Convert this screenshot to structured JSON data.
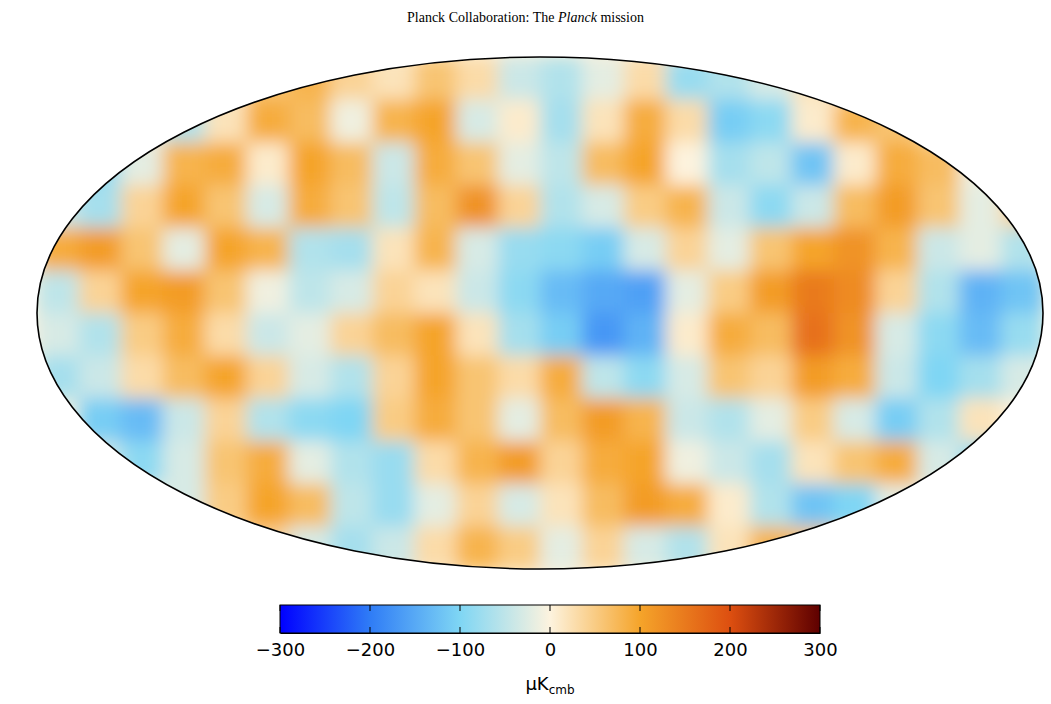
{
  "chart_data": {
    "type": "heatmap",
    "title": "Planck Collaboration: The Planck mission",
    "cells": [
      [
        null,
        null,
        null,
        null,
        null,
        60,
        80,
        40,
        20,
        60,
        30,
        -40,
        -60,
        -20,
        30,
        -80,
        -60,
        -30,
        20,
        null,
        null,
        null,
        null,
        null
      ],
      [
        null,
        null,
        null,
        -60,
        20,
        90,
        70,
        -10,
        80,
        100,
        -30,
        10,
        -70,
        20,
        90,
        30,
        -110,
        -90,
        10,
        80,
        60,
        null,
        null,
        null
      ],
      [
        null,
        -80,
        -20,
        80,
        90,
        10,
        100,
        70,
        -40,
        90,
        60,
        -20,
        -50,
        70,
        100,
        0,
        -70,
        -50,
        -120,
        10,
        90,
        70,
        -10,
        null
      ],
      [
        -40,
        -70,
        40,
        100,
        60,
        -30,
        90,
        60,
        -50,
        70,
        120,
        40,
        -60,
        -30,
        50,
        80,
        -40,
        -90,
        -40,
        70,
        110,
        60,
        -20,
        40
      ],
      [
        90,
        110,
        60,
        -20,
        100,
        80,
        -60,
        -70,
        20,
        80,
        -30,
        -80,
        -90,
        -110,
        -30,
        40,
        -20,
        60,
        100,
        120,
        80,
        -40,
        -20,
        -60
      ],
      [
        -50,
        40,
        100,
        110,
        60,
        -10,
        -50,
        -30,
        40,
        20,
        -40,
        -90,
        -130,
        -150,
        -160,
        -20,
        50,
        110,
        150,
        130,
        40,
        -60,
        -140,
        -120
      ],
      [
        -30,
        -60,
        50,
        90,
        30,
        -40,
        -20,
        40,
        70,
        100,
        20,
        -70,
        -110,
        -170,
        -140,
        10,
        90,
        70,
        160,
        120,
        -30,
        -90,
        -130,
        -80
      ],
      [
        -70,
        -40,
        30,
        70,
        100,
        40,
        -30,
        -60,
        40,
        100,
        60,
        30,
        90,
        -50,
        -90,
        -30,
        60,
        40,
        110,
        90,
        -40,
        -100,
        -70,
        -30
      ],
      [
        null,
        -110,
        -130,
        -40,
        40,
        -60,
        -90,
        -100,
        50,
        90,
        60,
        -20,
        70,
        110,
        80,
        -40,
        -60,
        -20,
        50,
        -30,
        -110,
        -60,
        20,
        null
      ],
      [
        null,
        -40,
        -90,
        -30,
        60,
        90,
        -20,
        -60,
        -80,
        30,
        80,
        110,
        40,
        90,
        100,
        -10,
        -40,
        -70,
        20,
        60,
        90,
        -30,
        -80,
        null
      ],
      [
        null,
        null,
        null,
        -30,
        50,
        100,
        70,
        -50,
        -80,
        -20,
        40,
        -30,
        20,
        70,
        110,
        90,
        10,
        -60,
        -120,
        -100,
        -20,
        null,
        null,
        null
      ],
      [
        null,
        null,
        null,
        null,
        null,
        40,
        -30,
        -70,
        -40,
        30,
        80,
        50,
        -20,
        40,
        -30,
        -60,
        20,
        80,
        60,
        null,
        null,
        null,
        null,
        null
      ]
    ],
    "colorbar": {
      "range": [
        -300,
        300
      ],
      "ticks": [
        {
          "value": -300,
          "label": "−300"
        },
        {
          "value": -200,
          "label": "−200"
        },
        {
          "value": -100,
          "label": "−100"
        },
        0,
        100,
        200,
        300
      ],
      "label": "μK",
      "label_sub": "cmb"
    }
  }
}
